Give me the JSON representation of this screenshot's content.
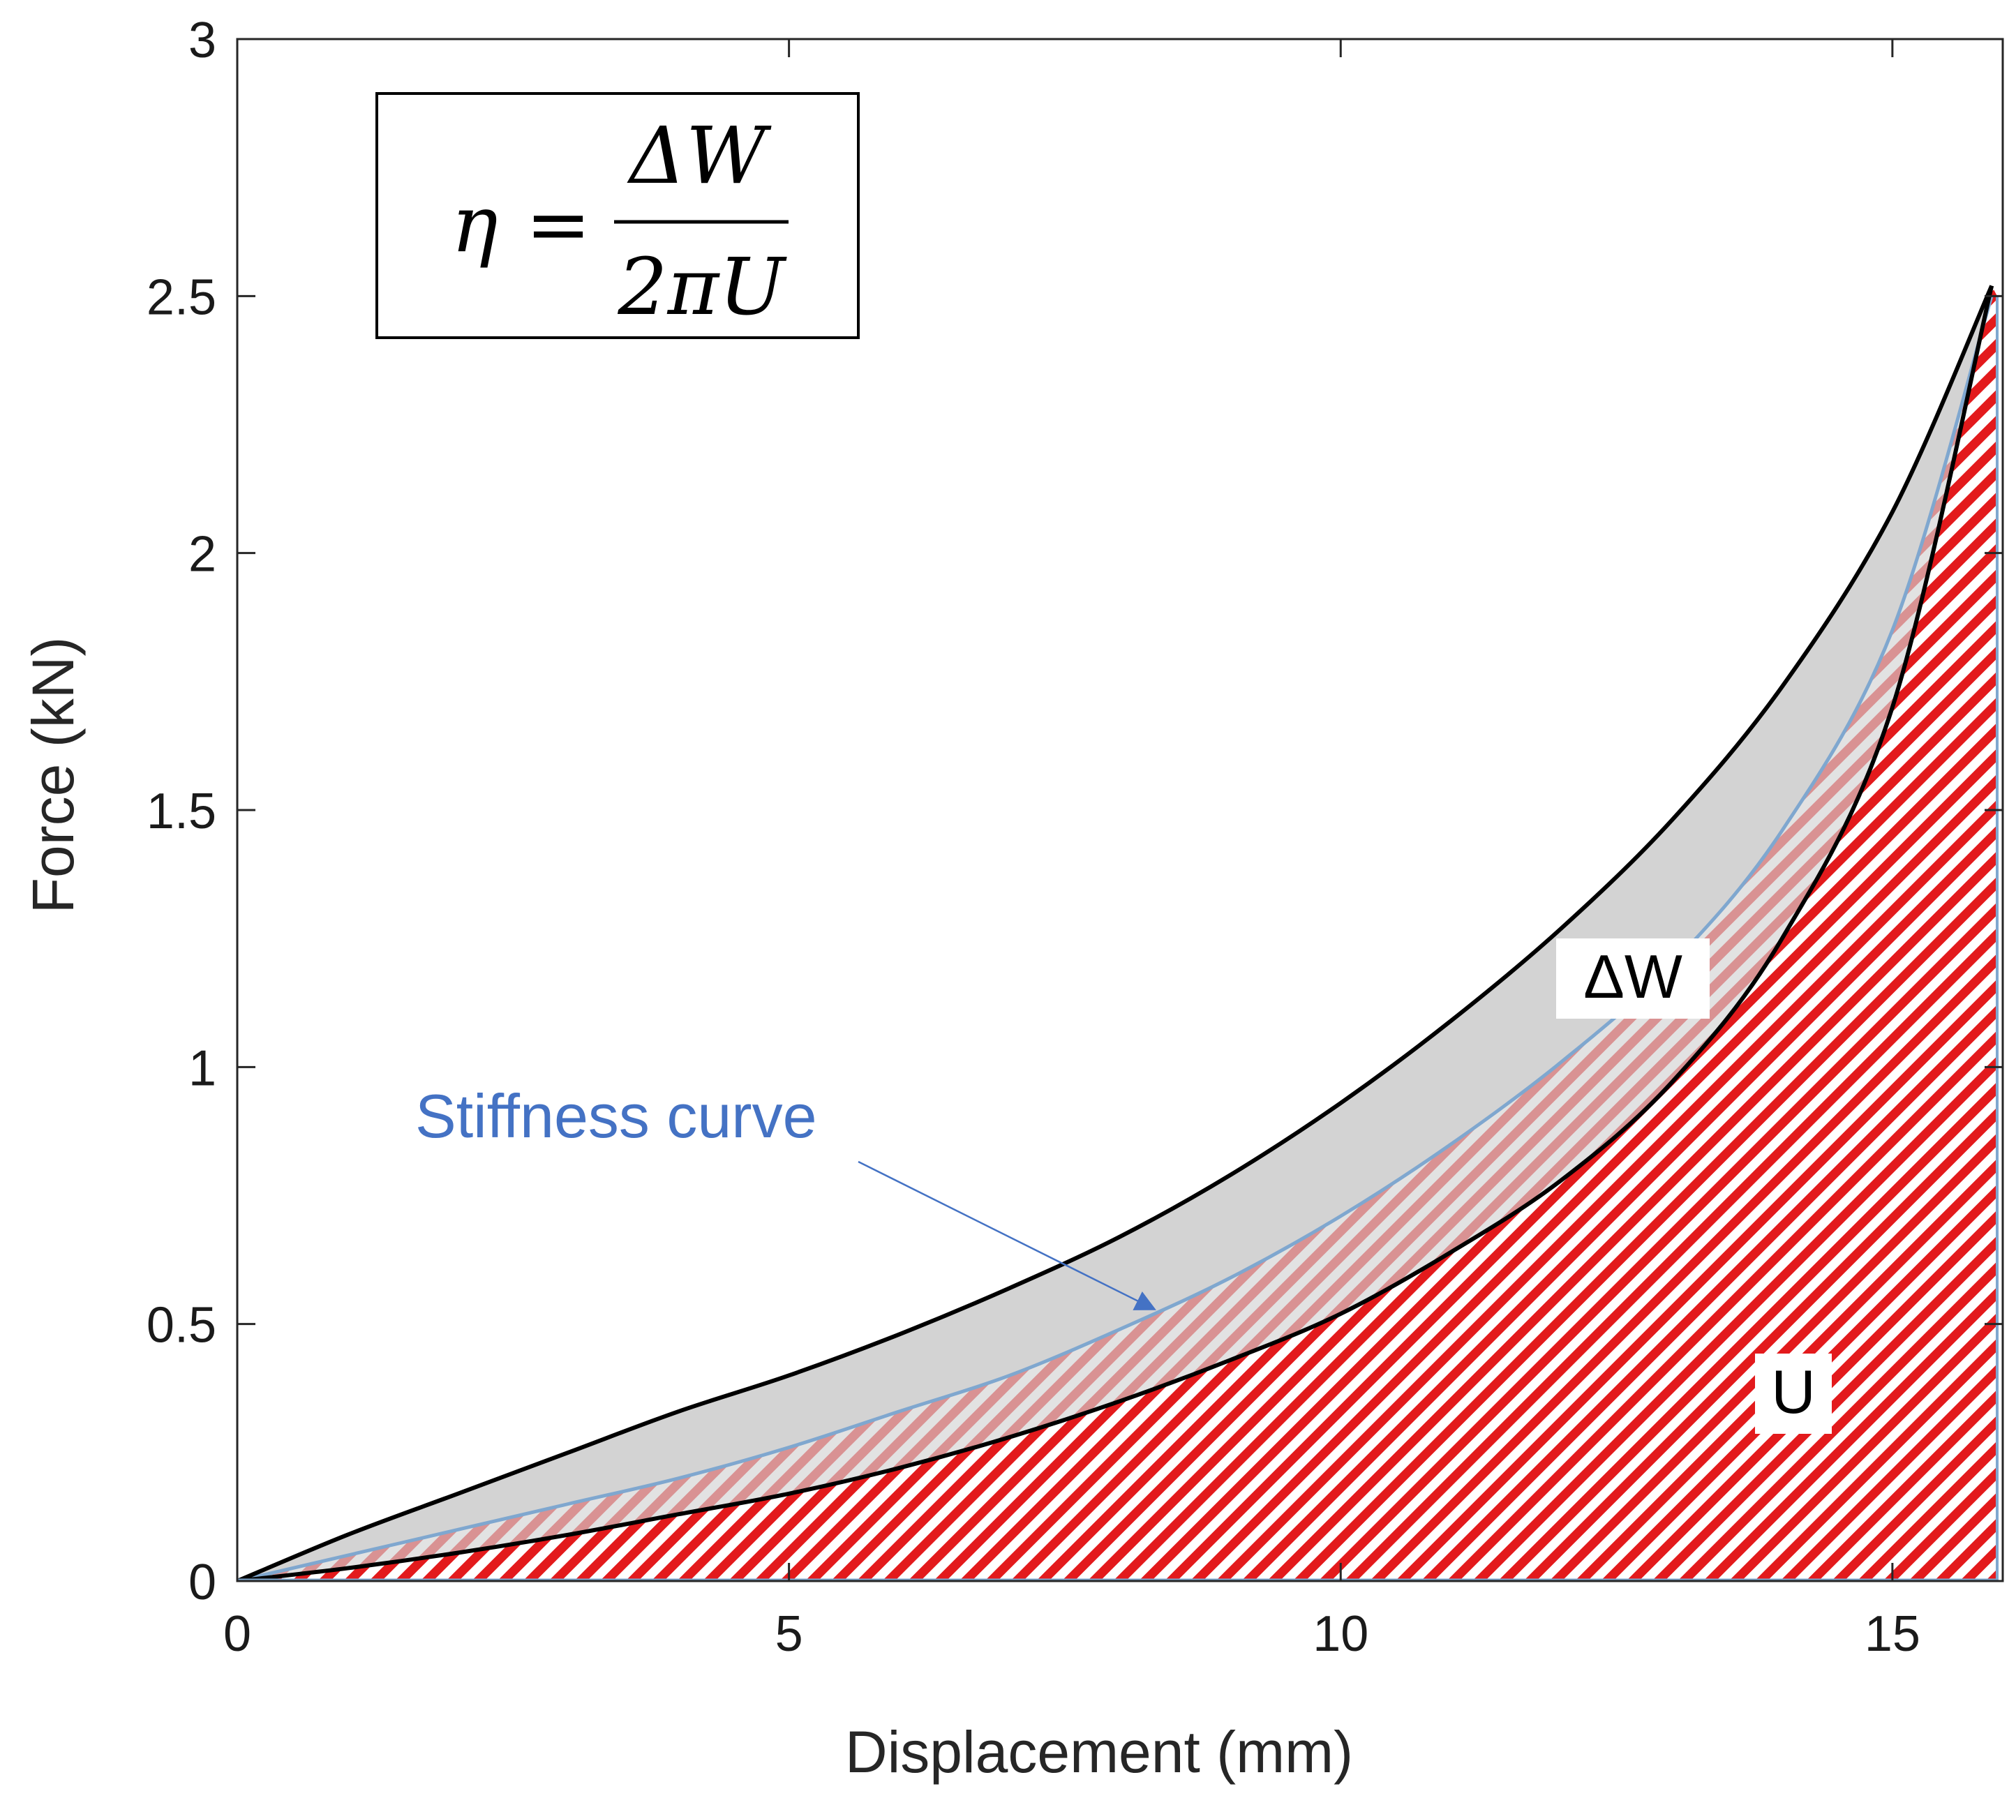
{
  "chart_data": {
    "type": "area",
    "xlabel": "Displacement (mm)",
    "ylabel": "Force (kN)",
    "xlim": [
      0,
      16
    ],
    "ylim": [
      0,
      3
    ],
    "xticks": [
      0,
      5,
      10,
      15
    ],
    "xtick_labels": [
      "0",
      "5",
      "10",
      "15"
    ],
    "yticks": [
      0,
      0.5,
      1,
      1.5,
      2,
      2.5,
      3
    ],
    "ytick_labels": [
      "0",
      "0.5",
      "1",
      "1.5",
      "2",
      "2.5",
      "3"
    ],
    "grid": false,
    "formula": {
      "lhs": "η",
      "equals": "=",
      "numerator": "ΔW",
      "denominator": "2πU"
    },
    "series": [
      {
        "role": "loading",
        "color": "#000000",
        "x": [
          0,
          1,
          2,
          3,
          4,
          5,
          6,
          7,
          8,
          9,
          10,
          11,
          12,
          13,
          14,
          15,
          15.9
        ],
        "y": [
          0,
          0.09,
          0.17,
          0.25,
          0.33,
          0.4,
          0.48,
          0.57,
          0.67,
          0.79,
          0.93,
          1.09,
          1.27,
          1.48,
          1.74,
          2.08,
          2.52
        ]
      },
      {
        "name": "Stiffness curve",
        "role": "stiffness",
        "color": "#7fa7cf",
        "x": [
          0,
          1,
          2,
          3,
          4,
          5,
          6,
          7,
          8,
          9,
          10,
          11,
          12,
          13,
          14,
          15,
          15.9
        ],
        "y": [
          0,
          0.05,
          0.1,
          0.15,
          0.2,
          0.26,
          0.33,
          0.4,
          0.49,
          0.59,
          0.71,
          0.85,
          1.01,
          1.2,
          1.46,
          1.85,
          2.5
        ]
      },
      {
        "role": "unloading",
        "color": "#000000",
        "x": [
          0,
          1,
          2,
          3,
          4,
          5,
          6,
          7,
          8,
          9,
          10,
          11,
          12,
          13,
          14,
          15,
          15.9
        ],
        "y": [
          0,
          0.025,
          0.055,
          0.09,
          0.13,
          0.17,
          0.22,
          0.28,
          0.35,
          0.43,
          0.52,
          0.64,
          0.78,
          0.97,
          1.25,
          1.7,
          2.52
        ]
      }
    ],
    "annotations": [
      {
        "text": "ΔW",
        "color": "#000000",
        "region": "between loading and unloading curves"
      },
      {
        "text": "U",
        "color": "#000000",
        "region": "below unloading curve"
      },
      {
        "text": "Stiffness curve",
        "color": "#4472c4",
        "arrow_to": [
          8.3,
          0.53
        ]
      }
    ],
    "fills": {
      "hysteresis": "#d3d3d3",
      "energy_hatch": "#e31a1c"
    }
  }
}
